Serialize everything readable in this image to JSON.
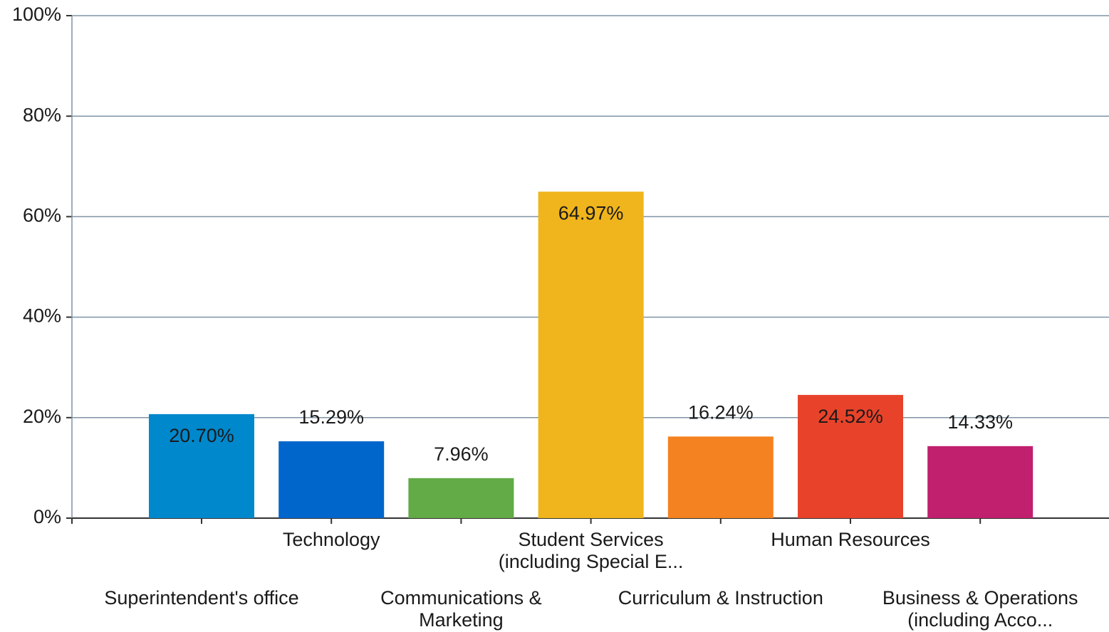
{
  "chart_data": {
    "type": "bar",
    "categories": [
      "Superintendent's office",
      "Technology",
      "Communications &\nMarketing",
      "Student Services\n(including Special E...",
      "Curriculum & Instruction",
      "Human Resources",
      "Business & Operations\n(including Acco..."
    ],
    "values": [
      20.7,
      15.29,
      7.96,
      64.97,
      16.24,
      24.52,
      14.33
    ],
    "value_labels": [
      "20.70%",
      "15.29%",
      "7.96%",
      "64.97%",
      "16.24%",
      "24.52%",
      "14.33%"
    ],
    "colors": [
      "#0088cc",
      "#0066cc",
      "#62ab46",
      "#f0b51c",
      "#f58220",
      "#e8432a",
      "#c0206e"
    ],
    "ylim": [
      0,
      100
    ],
    "yticks": [
      {
        "value": 0,
        "label": "0%"
      },
      {
        "value": 20,
        "label": "20%"
      },
      {
        "value": 40,
        "label": "40%"
      },
      {
        "value": 60,
        "label": "60%"
      },
      {
        "value": 80,
        "label": "80%"
      },
      {
        "value": 100,
        "label": "100%"
      }
    ],
    "grid": true
  }
}
